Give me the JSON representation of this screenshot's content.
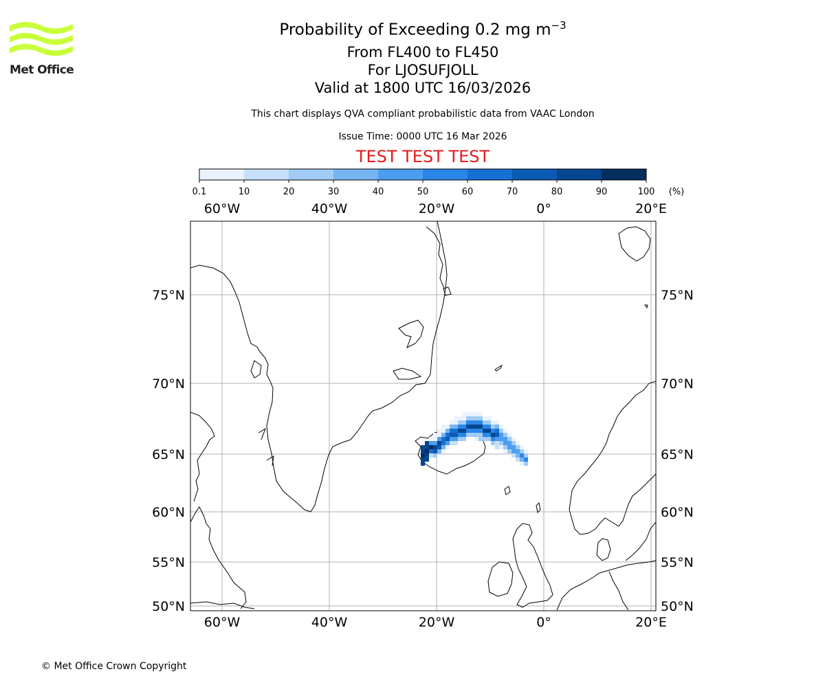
{
  "branding": {
    "logo_text": "Met Office",
    "logo_color": "#c8ff3a"
  },
  "header": {
    "title_prefix": "Probability of Exceeding 0.2 mg m",
    "title_exponent": "−3",
    "level_range": "From FL400 to FL450",
    "volcano": "For LJOSUFJOLL",
    "valid_time": "Valid at 1800 UTC 16/03/2026",
    "description": "This chart displays QVA compliant probabilistic data from VAAC London",
    "issue_time": "Issue Time: 0000 UTC 16 Mar 2026",
    "test_banner": "TEST TEST TEST",
    "test_banner_color": "#e41a1c"
  },
  "colorbar": {
    "ticks": [
      "0.1",
      "10",
      "20",
      "30",
      "40",
      "50",
      "60",
      "70",
      "80",
      "90",
      "100"
    ],
    "unit": "(%)",
    "colors": [
      "#eaf3fd",
      "#c7e0f9",
      "#a2cbf5",
      "#76b4f2",
      "#4b9def",
      "#2a87e7",
      "#1570d3",
      "#0b5ab3",
      "#054690",
      "#022e60"
    ]
  },
  "map": {
    "lon_labels": [
      "60°W",
      "40°W",
      "20°W",
      "0°",
      "20°E"
    ],
    "lat_labels": [
      "75°N",
      "70°N",
      "65°N",
      "60°N",
      "55°N",
      "50°N"
    ],
    "lon_values": [
      -60,
      -40,
      -20,
      0,
      20
    ],
    "lat_values": [
      75,
      70,
      65,
      60,
      55,
      50
    ],
    "grid_color": "#b0b0b0",
    "coast_color": "#000000"
  },
  "footer": {
    "copyright": "© Met Office Crown Copyright"
  }
}
